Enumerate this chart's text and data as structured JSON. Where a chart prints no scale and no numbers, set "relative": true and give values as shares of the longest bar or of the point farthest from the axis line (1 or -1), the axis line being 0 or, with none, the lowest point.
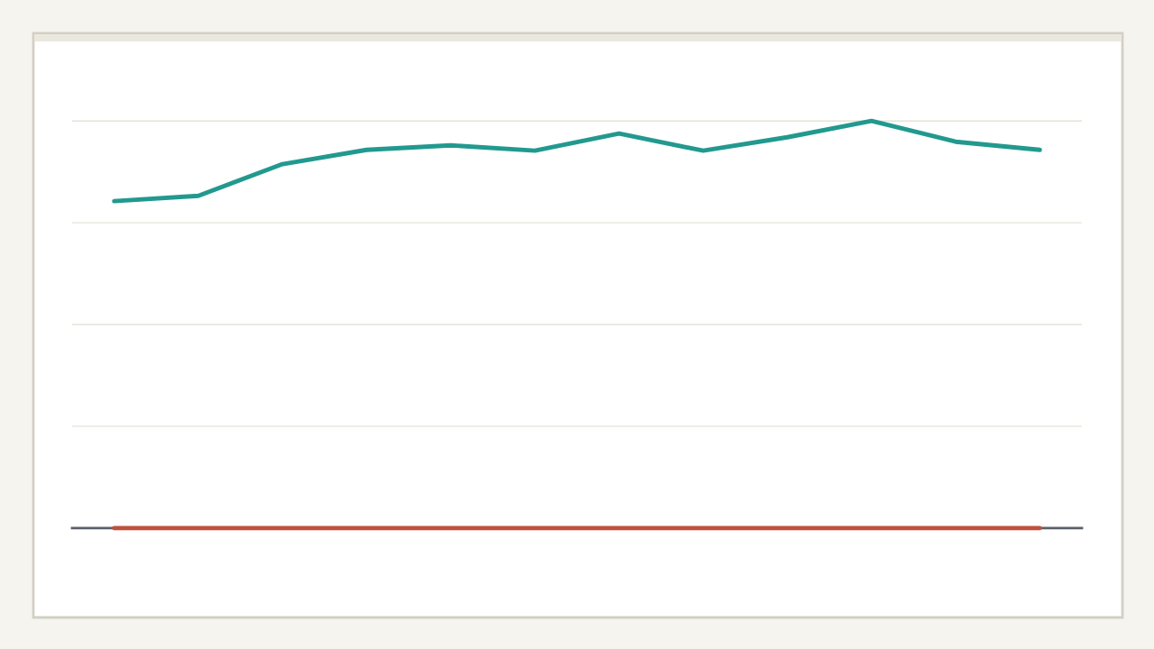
{
  "chart_data": {
    "type": "line",
    "relative": true,
    "grid": "y",
    "marker": "none",
    "line_style": "solid",
    "categories": [
      null,
      null,
      null,
      null,
      null,
      null,
      null,
      null,
      null,
      null,
      null,
      null
    ],
    "series": [
      {
        "color": "#22998f",
        "values": [
          0.803,
          0.816,
          0.894,
          0.929,
          0.94,
          0.927,
          0.969,
          0.927,
          0.96,
          1,
          0.949,
          0.929
        ]
      },
      {
        "color": "#c0503a",
        "values": [
          0,
          0,
          0,
          0,
          0,
          0,
          0,
          0,
          0,
          0,
          0,
          0
        ]
      }
    ]
  }
}
